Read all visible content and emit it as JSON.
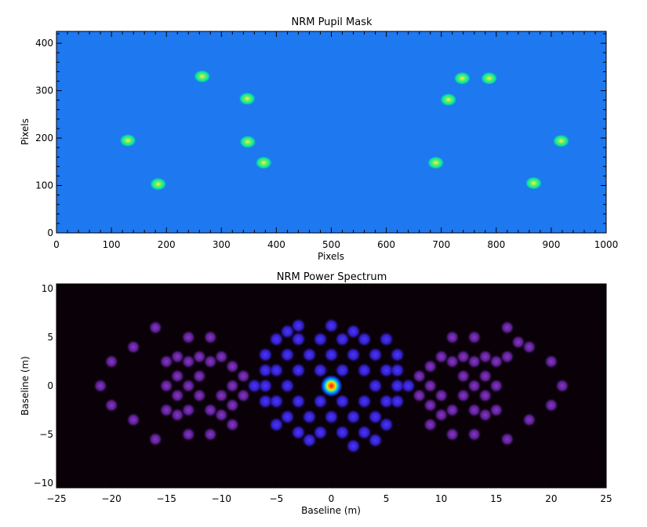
{
  "chart_data": [
    {
      "type": "heatmap",
      "title": "NRM Pupil Mask",
      "xlabel": "Pixels",
      "ylabel": "Pixels",
      "xlim": [
        0,
        1000
      ],
      "ylim": [
        0,
        425
      ],
      "xticks": [
        "0",
        "100",
        "200",
        "300",
        "400",
        "500",
        "600",
        "700",
        "800",
        "900",
        "1000"
      ],
      "yticks": [
        "0",
        "100",
        "200",
        "300",
        "400"
      ],
      "background_color": "#1e78f0",
      "apertures": [
        {
          "x": 130,
          "y": 195
        },
        {
          "x": 185,
          "y": 103
        },
        {
          "x": 265,
          "y": 330
        },
        {
          "x": 347,
          "y": 283
        },
        {
          "x": 348,
          "y": 192
        },
        {
          "x": 377,
          "y": 148
        },
        {
          "x": 690,
          "y": 148
        },
        {
          "x": 713,
          "y": 281
        },
        {
          "x": 738,
          "y": 326
        },
        {
          "x": 787,
          "y": 326
        },
        {
          "x": 868,
          "y": 105
        },
        {
          "x": 918,
          "y": 194
        }
      ]
    },
    {
      "type": "heatmap",
      "title": "NRM Power Spectrum",
      "xlabel": "Baseline (m)",
      "ylabel": "Baseline (m)",
      "xlim": [
        -25,
        25
      ],
      "ylim": [
        -10.5,
        10.5
      ],
      "xticks": [
        "−25",
        "−20",
        "−15",
        "−10",
        "−5",
        "0",
        "5",
        "10",
        "15",
        "20",
        "25"
      ],
      "yticks": [
        "−10",
        "−5",
        "0",
        "5",
        "10"
      ],
      "background_color": "#0a0008",
      "peak": {
        "x": 0,
        "y": 0
      },
      "peak_colors": [
        "#0a3ce6",
        "#00dcdc",
        "#ffd000",
        "#ff1400"
      ],
      "inner_blob_color": "#3c28e6",
      "outer_blob_color": "#6e2cb0",
      "inner_blobs": [
        [
          -6,
          3.2
        ],
        [
          -6,
          1.6
        ],
        [
          -6,
          0
        ],
        [
          -6,
          -1.6
        ],
        [
          -5,
          4.8
        ],
        [
          -5,
          1.6
        ],
        [
          -5,
          -1.6
        ],
        [
          -5,
          -4
        ],
        [
          -4,
          5.6
        ],
        [
          -4,
          3.2
        ],
        [
          -4,
          0
        ],
        [
          -4,
          -3.2
        ],
        [
          -3,
          4.8
        ],
        [
          -3,
          1.6
        ],
        [
          -3,
          -1.6
        ],
        [
          -3,
          -4.8
        ],
        [
          -2,
          3.2
        ],
        [
          -2,
          -3.2
        ],
        [
          -2,
          -5.6
        ],
        [
          -1,
          4.8
        ],
        [
          -1,
          1.6
        ],
        [
          -1,
          -1.6
        ],
        [
          -1,
          -4.8
        ],
        [
          0,
          3.2
        ],
        [
          0,
          -3.2
        ],
        [
          1,
          4.8
        ],
        [
          1,
          1.6
        ],
        [
          1,
          -1.6
        ],
        [
          1,
          -4.8
        ],
        [
          2,
          3.2
        ],
        [
          2,
          -3.2
        ],
        [
          2,
          5.6
        ],
        [
          3,
          4.8
        ],
        [
          3,
          1.6
        ],
        [
          3,
          -1.6
        ],
        [
          3,
          -4.8
        ],
        [
          4,
          3.2
        ],
        [
          4,
          0
        ],
        [
          4,
          -3.2
        ],
        [
          4,
          -5.6
        ],
        [
          5,
          4.8
        ],
        [
          5,
          1.6
        ],
        [
          5,
          -1.6
        ],
        [
          5,
          -4
        ],
        [
          6,
          3.2
        ],
        [
          6,
          1.6
        ],
        [
          6,
          0
        ],
        [
          6,
          -1.6
        ],
        [
          7,
          0
        ],
        [
          -7,
          0
        ],
        [
          0,
          6.2
        ],
        [
          -3,
          6.2
        ],
        [
          2,
          -6.2
        ]
      ],
      "outer_blobs": [
        [
          -21,
          0
        ],
        [
          -20,
          2.5
        ],
        [
          -20,
          -2
        ],
        [
          -18,
          4
        ],
        [
          -18,
          -3.5
        ],
        [
          -16,
          6
        ],
        [
          -16,
          -5.5
        ],
        [
          -15,
          2.5
        ],
        [
          -15,
          0
        ],
        [
          -15,
          -2.5
        ],
        [
          -14,
          3
        ],
        [
          -14,
          1
        ],
        [
          -14,
          -1
        ],
        [
          -14,
          -3
        ],
        [
          -13,
          5
        ],
        [
          -13,
          2.5
        ],
        [
          -13,
          0
        ],
        [
          -13,
          -2.5
        ],
        [
          -13,
          -5
        ],
        [
          -12,
          3
        ],
        [
          -12,
          1
        ],
        [
          -12,
          -1
        ],
        [
          -11,
          5
        ],
        [
          -11,
          2.5
        ],
        [
          -11,
          -2.5
        ],
        [
          -11,
          -5
        ],
        [
          -10,
          3
        ],
        [
          -10,
          -1
        ],
        [
          -10,
          -3
        ],
        [
          -9,
          2
        ],
        [
          -9,
          0
        ],
        [
          -9,
          -2
        ],
        [
          -9,
          -4
        ],
        [
          -8,
          1
        ],
        [
          -8,
          -1
        ],
        [
          21,
          0
        ],
        [
          20,
          2.5
        ],
        [
          20,
          -2
        ],
        [
          18,
          4
        ],
        [
          18,
          -3.5
        ],
        [
          16,
          6
        ],
        [
          16,
          -5.5
        ],
        [
          15,
          2.5
        ],
        [
          15,
          0
        ],
        [
          15,
          -2.5
        ],
        [
          14,
          3
        ],
        [
          14,
          1
        ],
        [
          14,
          -1
        ],
        [
          14,
          -3
        ],
        [
          13,
          5
        ],
        [
          13,
          2.5
        ],
        [
          13,
          0
        ],
        [
          13,
          -2.5
        ],
        [
          13,
          -5
        ],
        [
          12,
          3
        ],
        [
          12,
          1
        ],
        [
          12,
          -1
        ],
        [
          11,
          5
        ],
        [
          11,
          2.5
        ],
        [
          11,
          -2.5
        ],
        [
          11,
          -5
        ],
        [
          10,
          3
        ],
        [
          10,
          -1
        ],
        [
          10,
          -3
        ],
        [
          9,
          2
        ],
        [
          9,
          0
        ],
        [
          9,
          -2
        ],
        [
          9,
          -4
        ],
        [
          8,
          1
        ],
        [
          8,
          -1
        ],
        [
          17,
          4.5
        ],
        [
          16,
          3
        ]
      ]
    }
  ]
}
